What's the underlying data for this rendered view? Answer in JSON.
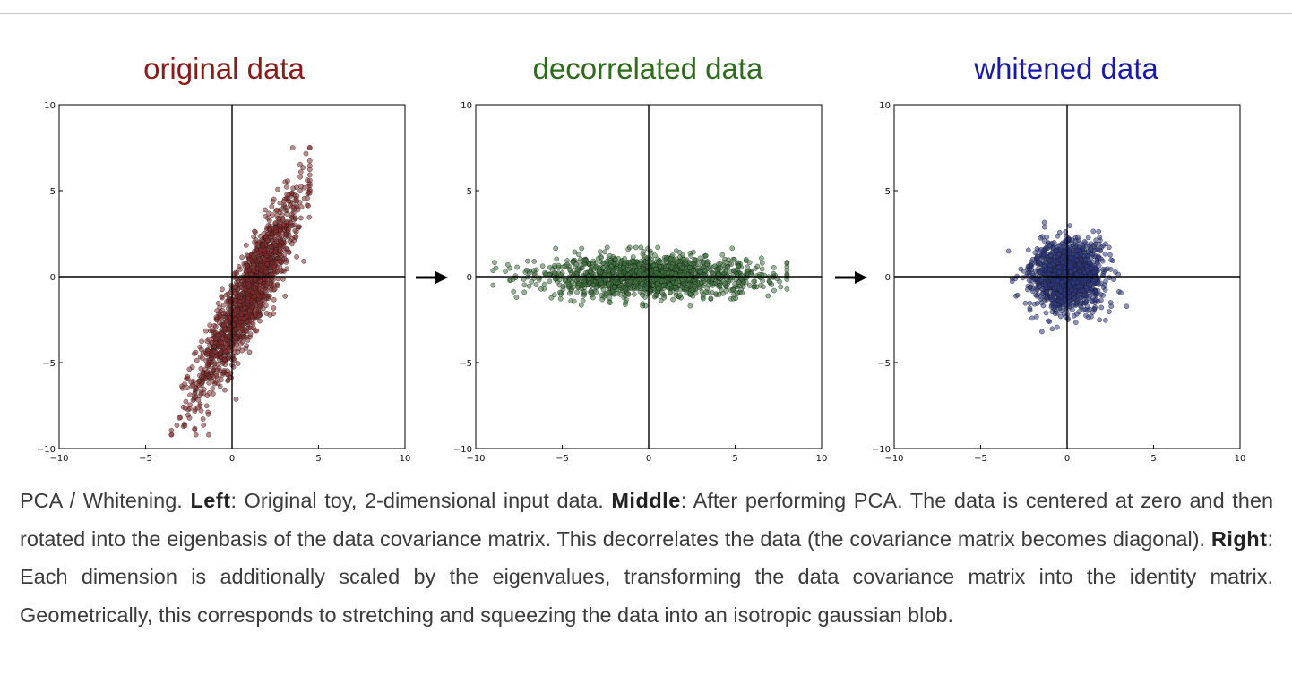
{
  "caption": {
    "lead": "PCA / Whitening.",
    "left_label": "Left",
    "left_text": ": Original toy, 2-dimensional input data.",
    "middle_label": "Middle",
    "middle_text": ": After performing PCA. The data is centered at zero and then rotated into the eigenbasis of the data covariance matrix. This decorrelates the data (the covariance matrix becomes diagonal).",
    "right_label": "Right",
    "right_text": ": Each dimension is additionally scaled by the eigenvalues, transforming the data covariance matrix into the identity matrix. Geometrically, this corresponds to stretching and squeezing the data into an isotropic gaussian blob."
  },
  "chart_data": [
    {
      "type": "scatter",
      "title": "original data",
      "title_color": "#8b1a1a",
      "point_color": "#8b2a2a",
      "xlim": [
        -10,
        10
      ],
      "ylim": [
        -10,
        10
      ],
      "xticks": [
        "−10",
        "−5",
        "0",
        "5",
        "10"
      ],
      "yticks": [
        "10",
        "5",
        "0",
        "−5",
        "−10"
      ],
      "distribution": {
        "mean": [
          1.0,
          -1.0
        ],
        "cov": [
          [
            2.3,
            4.0
          ],
          [
            4.0,
            8.5
          ]
        ],
        "n": 1500
      },
      "x_range_approx": [
        -3.5,
        4.5
      ],
      "y_range_approx": [
        -9.2,
        7.5
      ]
    },
    {
      "type": "scatter",
      "title": "decorrelated data",
      "title_color": "#2e6b1a",
      "point_color": "#3e7a3e",
      "xlim": [
        -10,
        10
      ],
      "ylim": [
        -10,
        10
      ],
      "xticks": [
        "−10",
        "−5",
        "0",
        "5",
        "10"
      ],
      "yticks": [
        "10",
        "5",
        "0",
        "−5",
        "−10"
      ],
      "distribution": {
        "mean": [
          0,
          0
        ],
        "cov": [
          [
            10.2,
            0
          ],
          [
            0,
            0.35
          ]
        ],
        "n": 1500
      },
      "x_range_approx": [
        -9,
        8
      ],
      "y_range_approx": [
        -1.7,
        1.7
      ]
    },
    {
      "type": "scatter",
      "title": "whitened data",
      "title_color": "#1a1aa8",
      "point_color": "#2e3a8c",
      "xlim": [
        -10,
        10
      ],
      "ylim": [
        -10,
        10
      ],
      "xticks": [
        "−10",
        "−5",
        "0",
        "5",
        "10"
      ],
      "yticks": [
        "10",
        "5",
        "0",
        "−5",
        "−10"
      ],
      "distribution": {
        "mean": [
          0,
          0
        ],
        "cov": [
          [
            1.0,
            0
          ],
          [
            0,
            1.0
          ]
        ],
        "n": 1500
      },
      "x_range_approx": [
        -3.5,
        3.5
      ],
      "y_range_approx": [
        -3.2,
        3.2
      ]
    }
  ]
}
